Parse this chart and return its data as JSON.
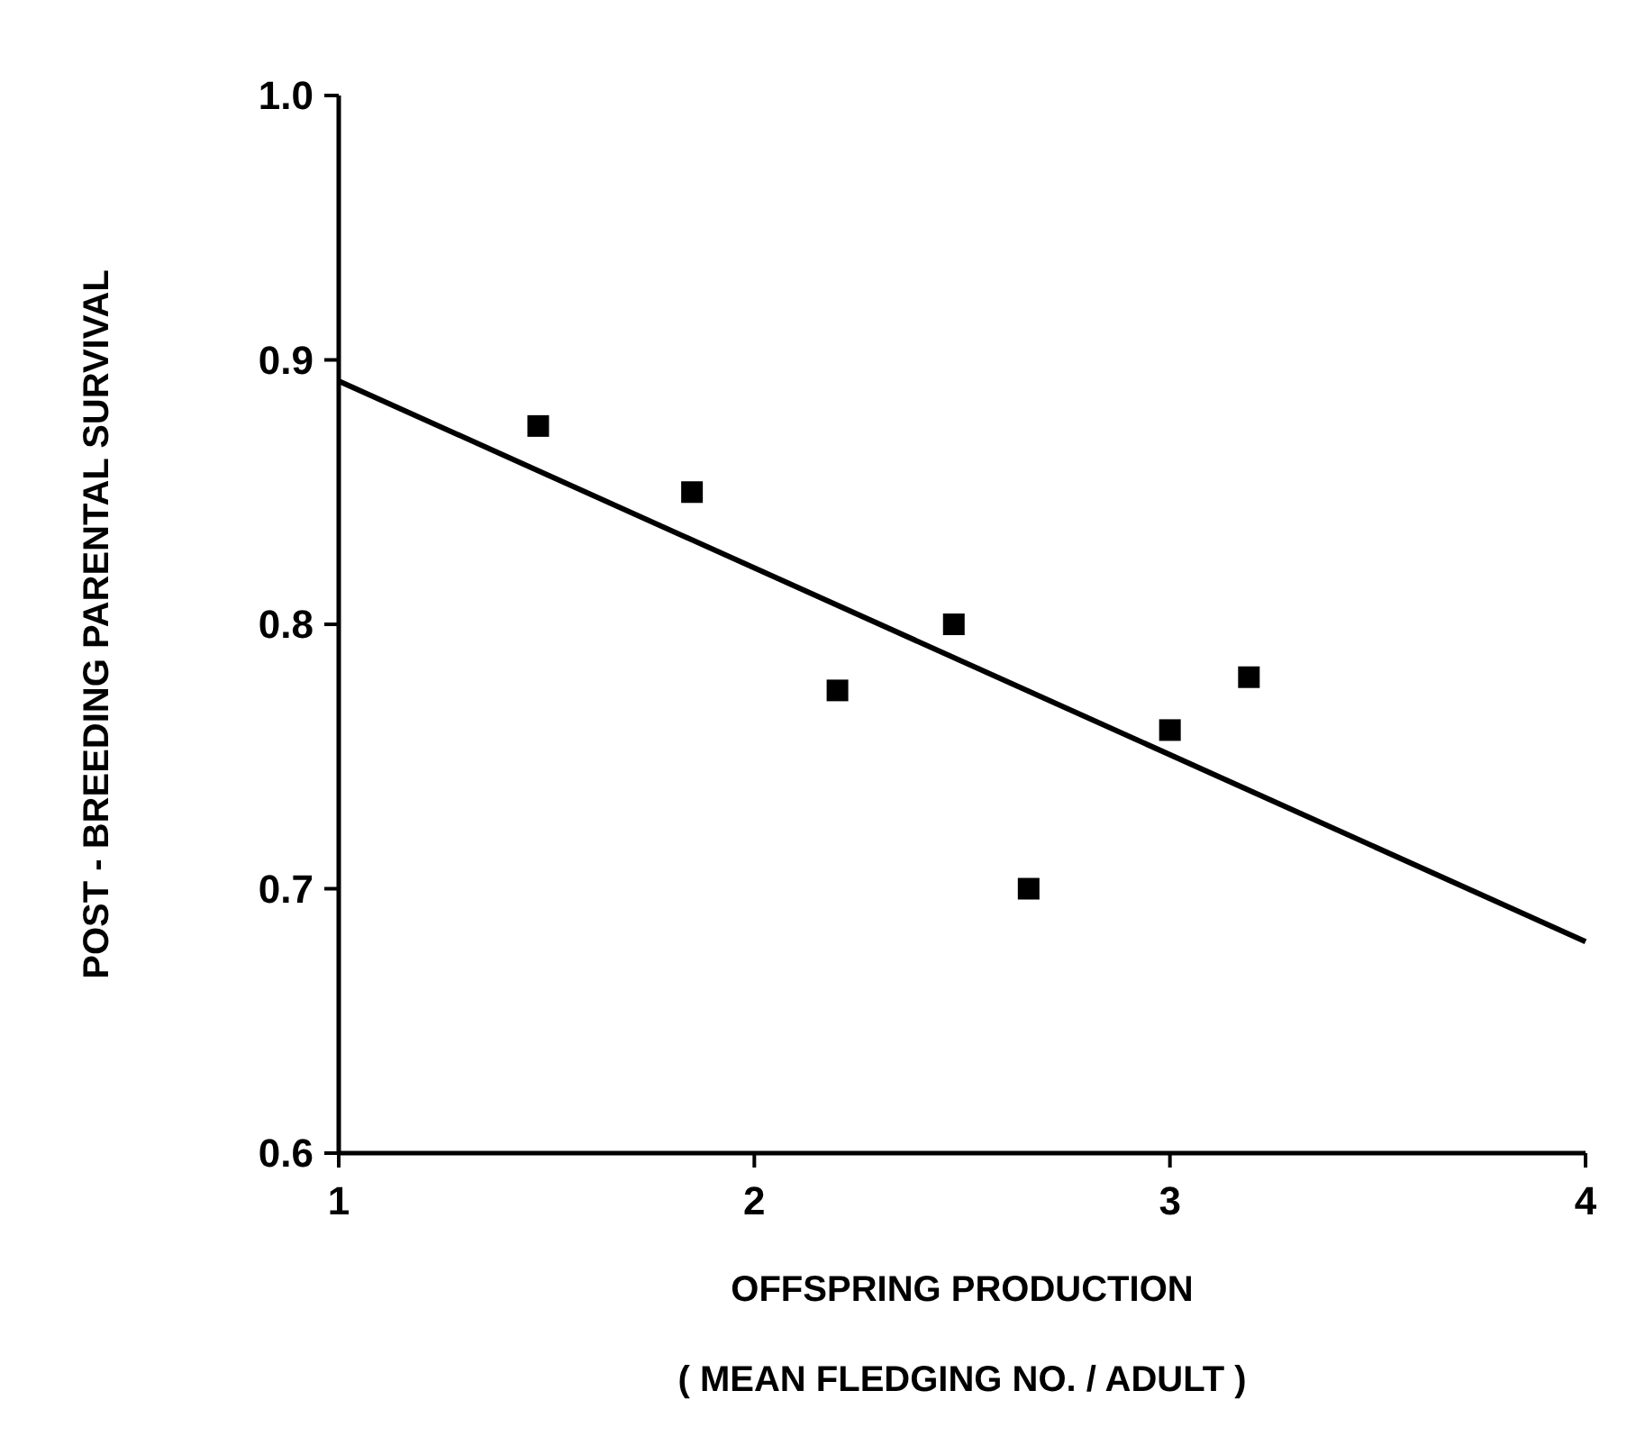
{
  "chart_data": {
    "type": "scatter",
    "xlabel": "OFFSPRING PRODUCTION\n( MEAN FLEDGING NO. / ADULT )",
    "ylabel": "POST - BREEDING PARENTAL SURVIVAL",
    "xlim": [
      1,
      4
    ],
    "xticks": [
      1,
      2,
      3,
      4
    ],
    "ylim": [
      0.6,
      1.0
    ],
    "yticks": [
      {
        "value": 0.6,
        "label": "0.6"
      },
      {
        "value": 0.7,
        "label": "0.7"
      },
      {
        "value": 0.8,
        "label": "0.8"
      },
      {
        "value": 0.9,
        "label": "0.9"
      },
      {
        "value": 1.0,
        "label": "1.0"
      }
    ],
    "grid": false,
    "series": [
      {
        "color": "#000000",
        "marker": "square",
        "x": [
          1.48,
          1.85,
          2.2,
          2.48,
          2.66,
          3.0,
          3.19
        ],
        "values": [
          0.875,
          0.85,
          0.775,
          0.8,
          0.7,
          0.76,
          0.78
        ]
      },
      {
        "type": "line",
        "color": "#000000",
        "x": [
          1,
          4
        ],
        "values": [
          0.892,
          0.68
        ]
      }
    ]
  }
}
